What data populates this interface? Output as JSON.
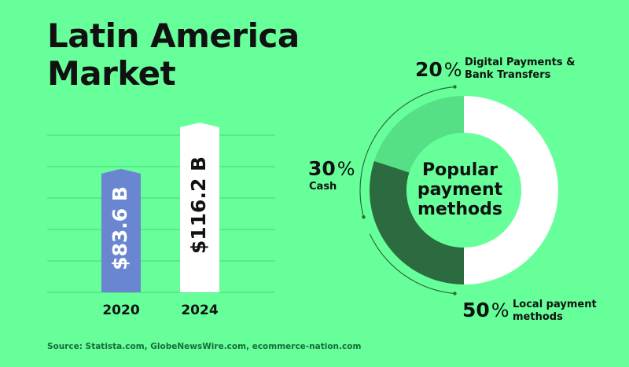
{
  "title": "Latin America Market",
  "source": "Source: Statista.com, GlobeNewsWire.com, ecommerce-nation.com",
  "colors": {
    "background": "#66ff99",
    "bar_2020": "#6b86d1",
    "bar_2024": "#ffffff",
    "slice_digital": "#56e085",
    "slice_cash": "#2b6b3f",
    "slice_local": "#ffffff",
    "grid": "#4fd57f"
  },
  "chart_data": [
    {
      "type": "bar",
      "categories": [
        "2020",
        "2024"
      ],
      "values": [
        83.6,
        116.2
      ],
      "value_labels": [
        "$83.6 B",
        "$116.2 B"
      ],
      "unit": "B"
    },
    {
      "type": "pie",
      "title": "Popular payment methods",
      "slices": [
        {
          "pct": "20",
          "symbol": "%",
          "value": 20,
          "label": "Digital Payments &\nBank Transfers"
        },
        {
          "pct": "30",
          "symbol": "%",
          "value": 30,
          "label": "Cash"
        },
        {
          "pct": "50",
          "symbol": "%",
          "value": 50,
          "label": "Local payment\nmethods"
        }
      ]
    }
  ]
}
